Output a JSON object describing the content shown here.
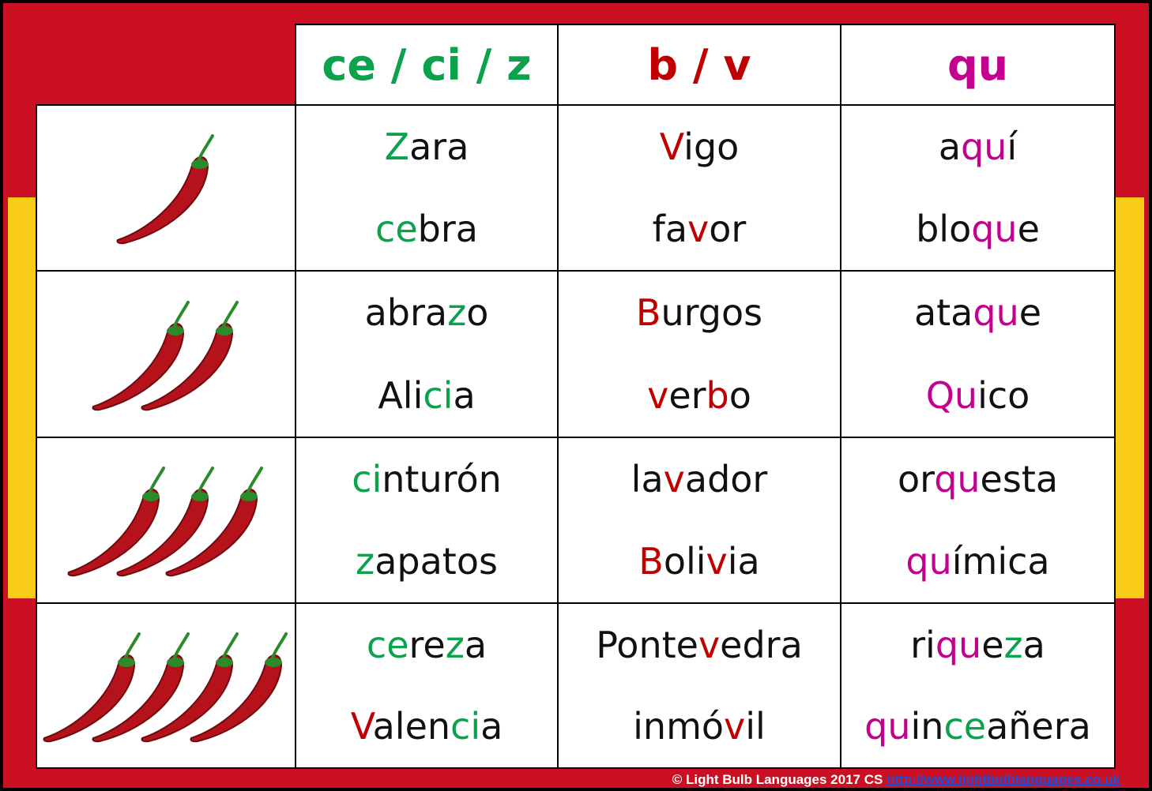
{
  "table": {
    "headers": [
      [
        {
          "text": "ce / ci / z",
          "color": "#0aa24a"
        }
      ],
      [
        {
          "text": "b / v",
          "color": "#c00000"
        }
      ],
      [
        {
          "text": "qu",
          "color": "#c4008e"
        }
      ]
    ],
    "rows": [
      {
        "difficulty": 1,
        "cells": [
          [
            [
              {
                "text": "Z",
                "color": "#0aa24a"
              },
              {
                "text": "ara"
              }
            ],
            [
              {
                "text": "ce",
                "color": "#0aa24a"
              },
              {
                "text": "bra"
              }
            ]
          ],
          [
            [
              {
                "text": "V",
                "color": "#c00000"
              },
              {
                "text": "igo"
              }
            ],
            [
              {
                "text": "fa"
              },
              {
                "text": "v",
                "color": "#c00000"
              },
              {
                "text": "or"
              }
            ]
          ],
          [
            [
              {
                "text": "a"
              },
              {
                "text": "qu",
                "color": "#c4008e"
              },
              {
                "text": "í"
              }
            ],
            [
              {
                "text": "blo"
              },
              {
                "text": "qu",
                "color": "#c4008e"
              },
              {
                "text": "e"
              }
            ]
          ]
        ]
      },
      {
        "difficulty": 2,
        "cells": [
          [
            [
              {
                "text": "abra"
              },
              {
                "text": "z",
                "color": "#0aa24a"
              },
              {
                "text": "o"
              }
            ],
            [
              {
                "text": "Ali"
              },
              {
                "text": "ci",
                "color": "#0aa24a"
              },
              {
                "text": "a"
              }
            ]
          ],
          [
            [
              {
                "text": "B",
                "color": "#c00000"
              },
              {
                "text": "urgos"
              }
            ],
            [
              {
                "text": "v",
                "color": "#c00000"
              },
              {
                "text": "er"
              },
              {
                "text": "b",
                "color": "#c00000"
              },
              {
                "text": "o"
              }
            ]
          ],
          [
            [
              {
                "text": "ata"
              },
              {
                "text": "qu",
                "color": "#c4008e"
              },
              {
                "text": "e"
              }
            ],
            [
              {
                "text": "Qu",
                "color": "#c4008e"
              },
              {
                "text": "ico"
              }
            ]
          ]
        ]
      },
      {
        "difficulty": 3,
        "cells": [
          [
            [
              {
                "text": "ci",
                "color": "#0aa24a"
              },
              {
                "text": "nturón"
              }
            ],
            [
              {
                "text": "z",
                "color": "#0aa24a"
              },
              {
                "text": "apatos"
              }
            ]
          ],
          [
            [
              {
                "text": "la"
              },
              {
                "text": "v",
                "color": "#c00000"
              },
              {
                "text": "ador"
              }
            ],
            [
              {
                "text": "B",
                "color": "#c00000"
              },
              {
                "text": "oli"
              },
              {
                "text": "v",
                "color": "#c00000"
              },
              {
                "text": "ia"
              }
            ]
          ],
          [
            [
              {
                "text": "or"
              },
              {
                "text": "qu",
                "color": "#c4008e"
              },
              {
                "text": "esta"
              }
            ],
            [
              {
                "text": "qu",
                "color": "#c4008e"
              },
              {
                "text": "ímica"
              }
            ]
          ]
        ]
      },
      {
        "difficulty": 4,
        "cells": [
          [
            [
              {
                "text": "ce",
                "color": "#0aa24a"
              },
              {
                "text": "re"
              },
              {
                "text": "z",
                "color": "#0aa24a"
              },
              {
                "text": "a"
              }
            ],
            [
              {
                "text": "V",
                "color": "#c00000"
              },
              {
                "text": "alen"
              },
              {
                "text": "ci",
                "color": "#0aa24a"
              },
              {
                "text": "a"
              }
            ]
          ],
          [
            [
              {
                "text": "Ponte"
              },
              {
                "text": "v",
                "color": "#c00000"
              },
              {
                "text": "edra"
              }
            ],
            [
              {
                "text": "inmó"
              },
              {
                "text": "v",
                "color": "#c00000"
              },
              {
                "text": "il"
              }
            ]
          ],
          [
            [
              {
                "text": "ri"
              },
              {
                "text": "qu",
                "color": "#c4008e"
              },
              {
                "text": "e"
              },
              {
                "text": "z",
                "color": "#0aa24a"
              },
              {
                "text": "a"
              }
            ],
            [
              {
                "text": "qu",
                "color": "#c4008e"
              },
              {
                "text": "in"
              },
              {
                "text": "ce",
                "color": "#0aa24a"
              },
              {
                "text": "añera"
              }
            ]
          ]
        ]
      }
    ]
  },
  "footer": {
    "copyright": "© Light Bulb Languages 2017 CS",
    "link": "http://www.lightbulblanguages.co.uk"
  }
}
